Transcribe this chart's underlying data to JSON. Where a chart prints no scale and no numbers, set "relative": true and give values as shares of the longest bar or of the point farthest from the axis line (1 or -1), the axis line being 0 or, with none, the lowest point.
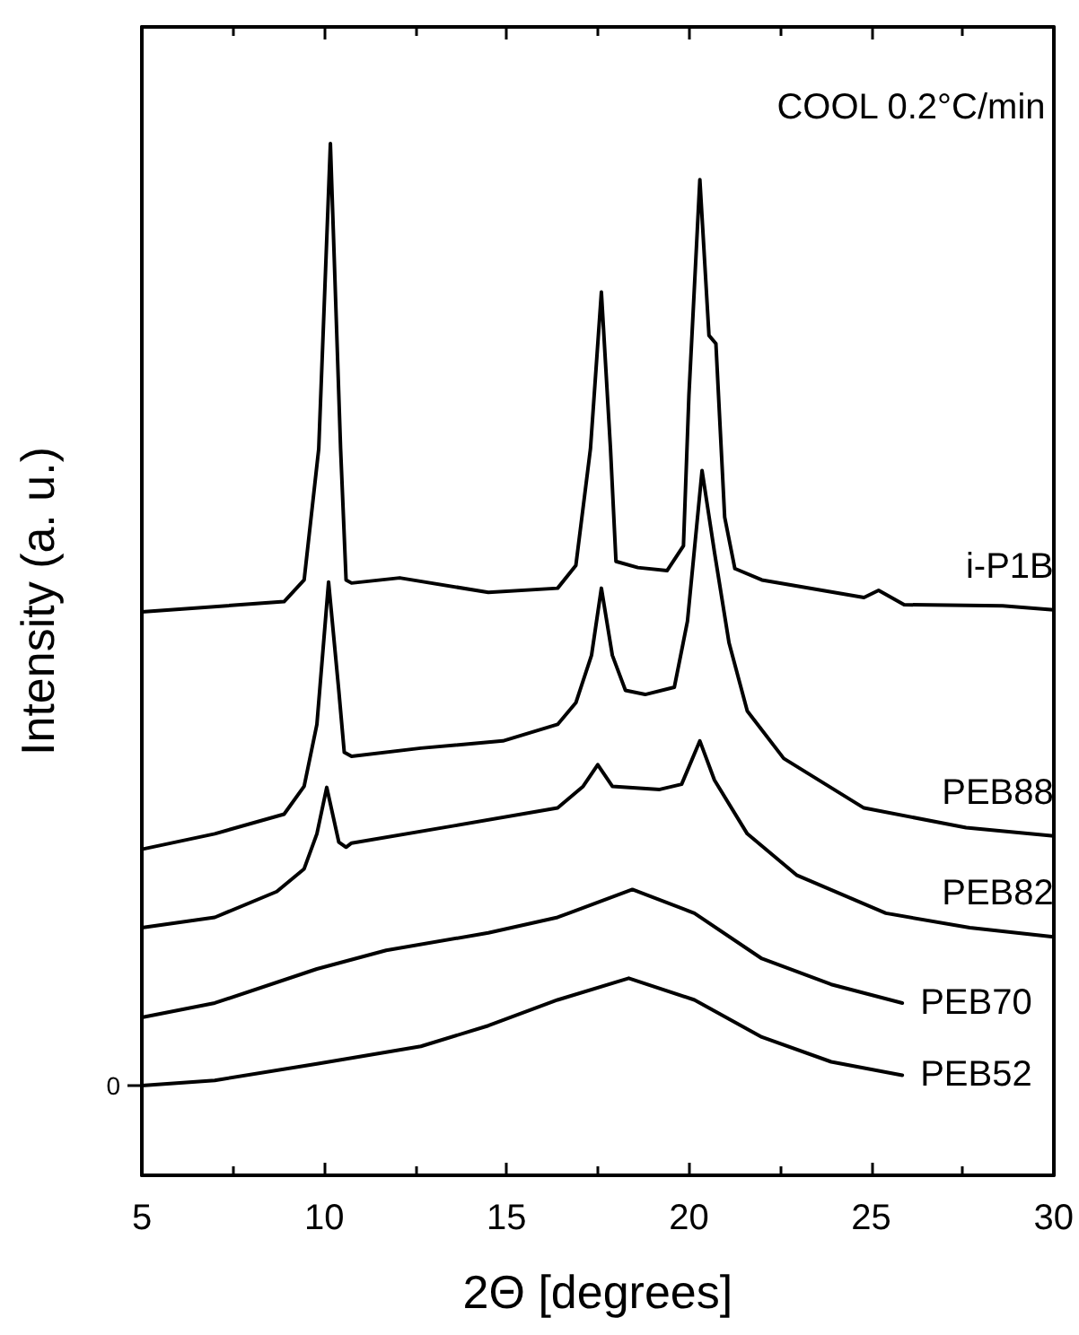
{
  "chart_data": {
    "type": "line",
    "relative": true,
    "xlabel": "2Θ [degrees]",
    "ylabel": "Intensity (a. u.)",
    "annotations": [
      "COOL 0.2°C/min",
      {
        "text": "0",
        "x": 5,
        "y": 0.087
      }
    ],
    "xlim": [
      5,
      30
    ],
    "xticks": [
      5,
      10,
      15,
      20,
      25,
      30
    ],
    "grid": false,
    "legend": false,
    "marker": "none",
    "line_style": "solid",
    "series": [
      {
        "name": "i-P1B",
        "color": "#000000",
        "x": [
          5,
          8.9,
          9.45,
          9.85,
          10.17,
          10.45,
          10.6,
          10.75,
          12.07,
          14.5,
          16.4,
          16.9,
          17.3,
          17.6,
          17.85,
          18.0,
          18.6,
          19.4,
          19.85,
          20.0,
          20.3,
          20.55,
          20.74,
          20.98,
          21.26,
          22.0,
          24.8,
          25.2,
          25.9,
          28.6,
          30
        ],
        "values": [
          0.546,
          0.556,
          0.577,
          0.704,
          1.0,
          0.704,
          0.577,
          0.574,
          0.579,
          0.565,
          0.569,
          0.591,
          0.704,
          0.856,
          0.704,
          0.595,
          0.589,
          0.586,
          0.61,
          0.756,
          0.965,
          0.814,
          0.806,
          0.638,
          0.588,
          0.577,
          0.56,
          0.567,
          0.553,
          0.552,
          0.548
        ]
      },
      {
        "name": "PEB88",
        "color": "#000000",
        "x": [
          5,
          7.0,
          8.9,
          9.45,
          9.8,
          10.12,
          10.4,
          10.55,
          10.75,
          12.65,
          14.9,
          16.4,
          16.9,
          17.33,
          17.6,
          17.9,
          18.26,
          18.8,
          19.6,
          19.96,
          20.36,
          20.7,
          21.1,
          21.6,
          22.6,
          24.8,
          27.6,
          30
        ],
        "values": [
          0.316,
          0.331,
          0.35,
          0.377,
          0.437,
          0.575,
          0.47,
          0.41,
          0.406,
          0.414,
          0.421,
          0.437,
          0.458,
          0.504,
          0.569,
          0.504,
          0.47,
          0.466,
          0.473,
          0.537,
          0.683,
          0.604,
          0.516,
          0.45,
          0.404,
          0.356,
          0.337,
          0.329
        ]
      },
      {
        "name": "PEB82",
        "color": "#000000",
        "x": [
          5,
          7.0,
          8.7,
          9.45,
          9.8,
          10.07,
          10.4,
          10.6,
          10.75,
          13.6,
          16.4,
          17.1,
          17.5,
          17.9,
          19.2,
          19.8,
          20.3,
          20.7,
          21.6,
          22.95,
          25.4,
          27.7,
          30
        ],
        "values": [
          0.24,
          0.25,
          0.275,
          0.297,
          0.331,
          0.376,
          0.323,
          0.318,
          0.322,
          0.339,
          0.356,
          0.377,
          0.398,
          0.377,
          0.374,
          0.379,
          0.421,
          0.383,
          0.331,
          0.291,
          0.254,
          0.24,
          0.231
        ]
      },
      {
        "name": "PEB70",
        "color": "#000000",
        "x": [
          5,
          7.0,
          9.8,
          11.7,
          14.5,
          16.4,
          18.45,
          20.15,
          22.0,
          23.9,
          25.85
        ],
        "values": [
          0.153,
          0.167,
          0.2,
          0.218,
          0.235,
          0.25,
          0.277,
          0.254,
          0.21,
          0.185,
          0.167
        ]
      },
      {
        "name": "PEB52",
        "color": "#000000",
        "x": [
          5,
          7.0,
          9.8,
          12.65,
          14.5,
          16.4,
          18.35,
          20.15,
          22.0,
          23.9,
          25.85
        ],
        "values": [
          0.087,
          0.092,
          0.108,
          0.125,
          0.145,
          0.17,
          0.191,
          0.17,
          0.134,
          0.11,
          0.097
        ]
      }
    ]
  }
}
